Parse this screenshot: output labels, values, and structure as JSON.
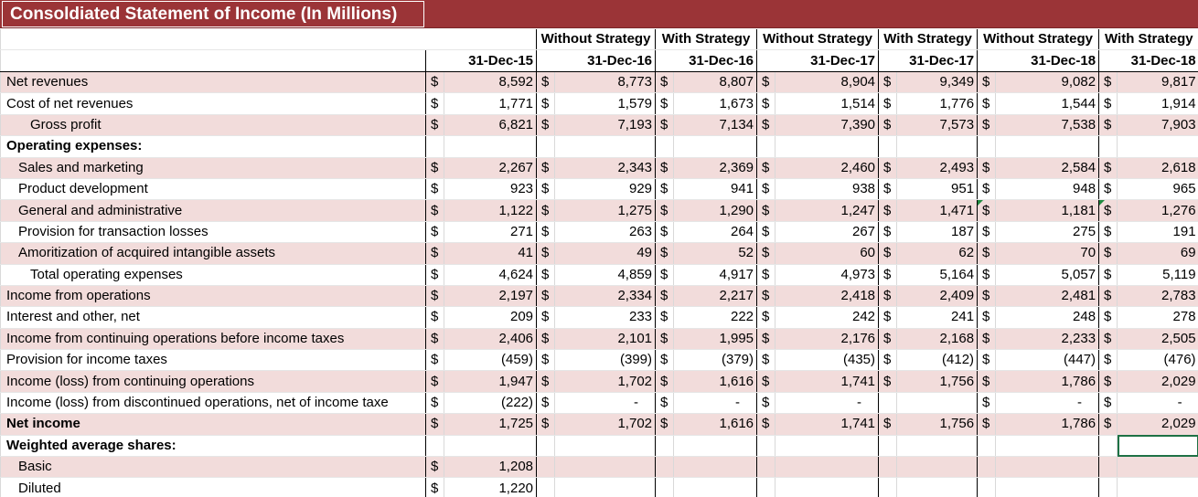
{
  "title": "Consoldiated Statement of Income (In Millions)",
  "strategy_headers": [
    "",
    "Without Strategy",
    "With Strategy",
    "Without Strategy",
    "With Strategy",
    "Without Strategy",
    "With Strategy"
  ],
  "date_headers": [
    "31-Dec-15",
    "31-Dec-16",
    "31-Dec-16",
    "31-Dec-17",
    "31-Dec-17",
    "31-Dec-18",
    "31-Dec-18"
  ],
  "currency": "$",
  "rows": [
    {
      "label": "Net revenues",
      "values": [
        "8,592",
        "8,773",
        "8,807",
        "8,904",
        "9,349",
        "9,082",
        "9,817"
      ]
    },
    {
      "label": "Cost of net revenues",
      "values": [
        "1,771",
        "1,579",
        "1,673",
        "1,514",
        "1,776",
        "1,544",
        "1,914"
      ]
    },
    {
      "label": "Gross profit",
      "values": [
        "6,821",
        "7,193",
        "7,134",
        "7,390",
        "7,573",
        "7,538",
        "7,903"
      ]
    },
    {
      "label": "Operating expenses:"
    },
    {
      "label": "Sales and marketing",
      "values": [
        "2,267",
        "2,343",
        "2,369",
        "2,460",
        "2,493",
        "2,584",
        "2,618"
      ]
    },
    {
      "label": "Product development",
      "values": [
        "923",
        "929",
        "941",
        "938",
        "951",
        "948",
        "965"
      ]
    },
    {
      "label": "General and administrative",
      "values": [
        "1,122",
        "1,275",
        "1,290",
        "1,247",
        "1,471",
        "1,181",
        "1,276"
      ]
    },
    {
      "label": "Provision for transaction losses",
      "values": [
        "271",
        "263",
        "264",
        "267",
        "187",
        "275",
        "191"
      ]
    },
    {
      "label": "Amoritization of acquired intangible assets",
      "values": [
        "41",
        "49",
        "52",
        "60",
        "62",
        "70",
        "69"
      ]
    },
    {
      "label": "Total operating expenses",
      "values": [
        "4,624",
        "4,859",
        "4,917",
        "4,973",
        "5,164",
        "5,057",
        "5,119"
      ]
    },
    {
      "label": "Income from operations",
      "values": [
        "2,197",
        "2,334",
        "2,217",
        "2,418",
        "2,409",
        "2,481",
        "2,783"
      ]
    },
    {
      "label": "Interest and other, net",
      "values": [
        "209",
        "233",
        "222",
        "242",
        "241",
        "248",
        "278"
      ]
    },
    {
      "label": "Income from continuing operations before income taxes",
      "values": [
        "2,406",
        "2,101",
        "1,995",
        "2,176",
        "2,168",
        "2,233",
        "2,505"
      ]
    },
    {
      "label": "Provision for income taxes",
      "values": [
        "(459)",
        "(399)",
        "(379)",
        "(435)",
        "(412)",
        "(447)",
        "(476)"
      ]
    },
    {
      "label": "Income (loss) from continuing operations",
      "values": [
        "1,947",
        "1,702",
        "1,616",
        "1,741",
        "1,756",
        "1,786",
        "2,029"
      ]
    },
    {
      "label": "Income (loss) from discontinued operations, net of income taxe",
      "values": [
        "(222)",
        "-",
        "-",
        "-",
        "",
        "-",
        "-"
      ]
    },
    {
      "label": "Net income",
      "values": [
        "1,725",
        "1,702",
        "1,616",
        "1,741",
        "1,756",
        "1,786",
        "2,029"
      ]
    },
    {
      "label": "Weighted average shares:"
    },
    {
      "label": "Basic",
      "values": [
        "1,208"
      ]
    },
    {
      "label": "Diluted",
      "values": [
        "1,220"
      ]
    }
  ]
}
